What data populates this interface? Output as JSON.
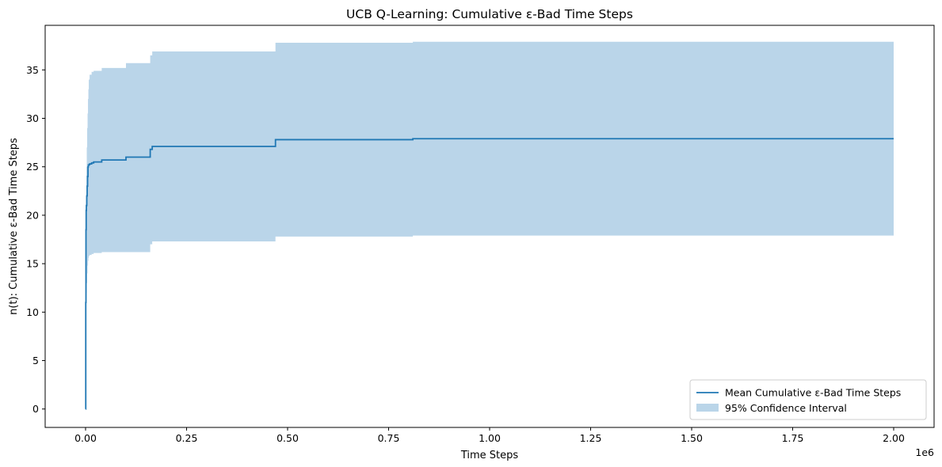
{
  "chart_data": {
    "type": "line",
    "title": "UCB Q-Learning: Cumulative ε-Bad Time Steps",
    "xlabel": "Time Steps",
    "ylabel": "n(t): Cumulative ε-Bad Time Steps",
    "x_offset_label": "1e6",
    "xlim": [
      -0.1,
      2.1
    ],
    "ylim": [
      -1.9,
      39.6
    ],
    "x_ticks": [
      0.0,
      0.25,
      0.5,
      0.75,
      1.0,
      1.25,
      1.5,
      1.75,
      2.0
    ],
    "x_tick_labels": [
      "0.00",
      "0.25",
      "0.50",
      "0.75",
      "1.00",
      "1.25",
      "1.50",
      "1.75",
      "2.00"
    ],
    "y_ticks": [
      0,
      5,
      10,
      15,
      20,
      25,
      30,
      35
    ],
    "y_tick_labels": [
      "0",
      "5",
      "10",
      "15",
      "20",
      "25",
      "30",
      "35"
    ],
    "grid": false,
    "legend_position": "lower-right",
    "colors": {
      "mean": "#1f77b4",
      "ci": "#bad5e9"
    },
    "series": [
      {
        "name": "Mean Cumulative ε-Bad Time Steps",
        "kind": "line",
        "x": [
          0,
          0.0005,
          0.001,
          0.0015,
          0.002,
          0.003,
          0.004,
          0.005,
          0.006,
          0.007,
          0.008,
          0.01,
          0.015,
          0.02,
          0.03,
          0.04,
          0.1,
          0.16,
          0.165,
          0.47,
          0.81,
          2.0
        ],
        "y": [
          0,
          11,
          18.5,
          20.5,
          21.0,
          22.0,
          23.0,
          24.0,
          25.0,
          25.2,
          25.2,
          25.3,
          25.4,
          25.5,
          25.5,
          25.7,
          26.0,
          26.8,
          27.1,
          27.8,
          27.9,
          27.9
        ]
      },
      {
        "name": "95% Confidence Interval",
        "kind": "band",
        "x": [
          0,
          0.0005,
          0.001,
          0.002,
          0.003,
          0.004,
          0.005,
          0.006,
          0.007,
          0.008,
          0.01,
          0.015,
          0.02,
          0.03,
          0.04,
          0.1,
          0.16,
          0.165,
          0.47,
          0.81,
          2.0
        ],
        "lower": [
          0,
          5,
          10,
          12,
          13,
          14,
          14.8,
          15.3,
          15.6,
          15.8,
          15.9,
          16.0,
          16.1,
          16.1,
          16.2,
          16.2,
          17.0,
          17.3,
          17.8,
          17.9,
          17.9
        ],
        "upper": [
          0,
          15,
          22,
          25,
          27,
          29,
          30.5,
          32,
          33,
          34,
          34.5,
          34.8,
          34.9,
          34.9,
          35.2,
          35.7,
          36.5,
          36.9,
          37.8,
          37.9,
          37.9
        ]
      }
    ]
  }
}
